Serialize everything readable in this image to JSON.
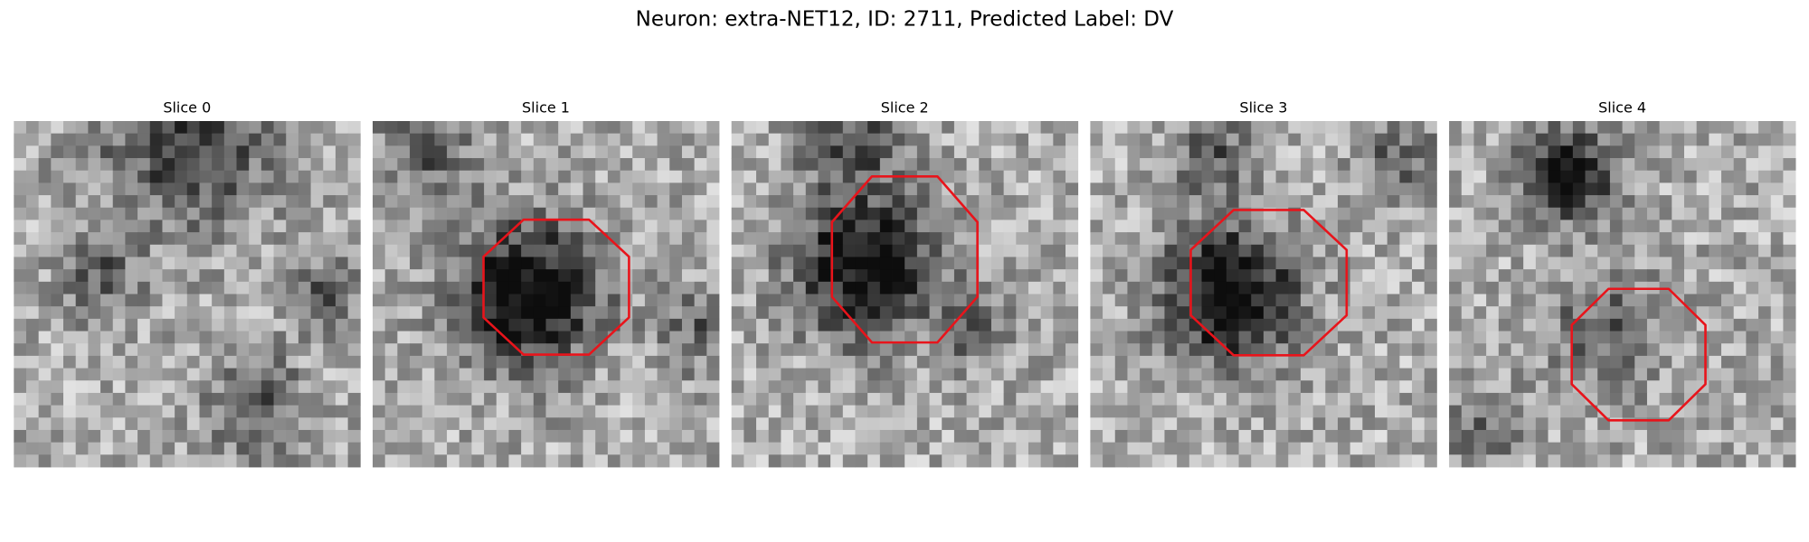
{
  "title": "Neuron: extra-NET12, ID: 2711, Predicted Label: DV",
  "panels": [
    {
      "title": "Slice 0"
    },
    {
      "title": "Slice 1"
    },
    {
      "title": "Slice 2"
    },
    {
      "title": "Slice 3"
    },
    {
      "title": "Slice 4"
    }
  ]
}
